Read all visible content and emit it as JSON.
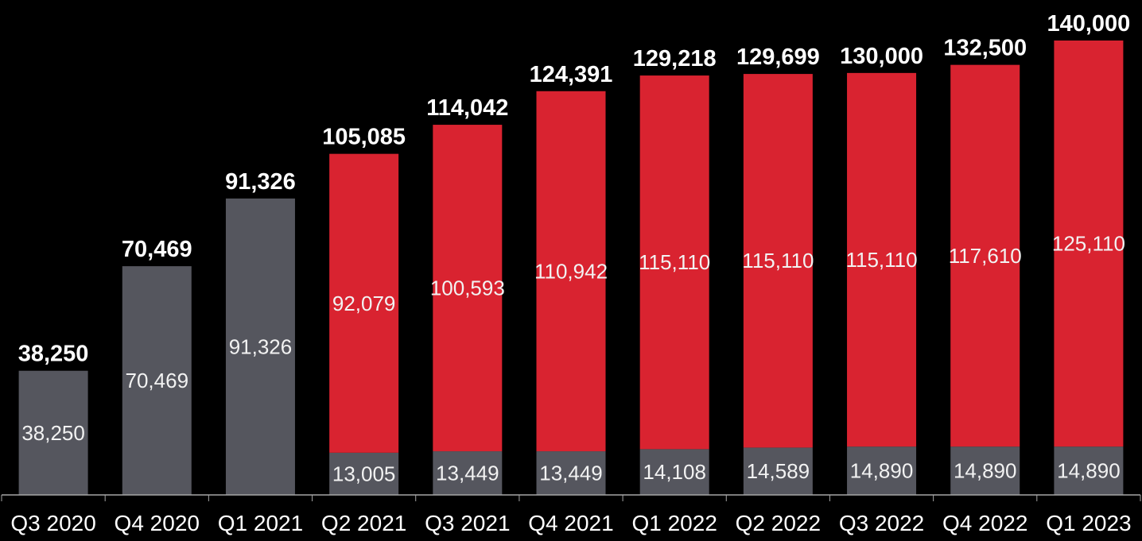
{
  "chart_data": {
    "type": "bar",
    "stacked": true,
    "categories": [
      "Q3 2020",
      "Q4 2020",
      "Q1 2021",
      "Q2 2021",
      "Q3 2021",
      "Q4 2021",
      "Q1 2022",
      "Q2 2022",
      "Q3 2022",
      "Q4 2022",
      "Q1 2023"
    ],
    "series": [
      {
        "color": "#55565e",
        "values": [
          38250,
          70469,
          91326,
          13005,
          13449,
          13449,
          14108,
          14589,
          14890,
          14890,
          14890
        ],
        "labels": [
          "38,250",
          "70,469",
          "91,326",
          "13,005",
          "13,449",
          "13,449",
          "14,108",
          "14,589",
          "14,890",
          "14,890",
          "14,890"
        ]
      },
      {
        "color": "#d92330",
        "values": [
          0,
          0,
          0,
          92079,
          100593,
          110942,
          115110,
          115110,
          115110,
          117610,
          125110
        ],
        "labels": [
          "",
          "",
          "",
          "92,079",
          "100,593",
          "110,942",
          "115,110",
          "115,110",
          "115,110",
          "117,610",
          "125,110"
        ]
      }
    ],
    "totals": [
      38250,
      70469,
      91326,
      105085,
      114042,
      124391,
      129218,
      129699,
      130000,
      132500,
      140000
    ],
    "total_labels": [
      "38,250",
      "70,469",
      "91,326",
      "105,085",
      "114,042",
      "124,391",
      "129,218",
      "129,699",
      "130,000",
      "132,500",
      "140,000"
    ],
    "ylim": [
      0,
      140000
    ],
    "grid": false,
    "legend": "none",
    "colors": {
      "background": "#000000",
      "axis": "#a6a6a6"
    }
  }
}
